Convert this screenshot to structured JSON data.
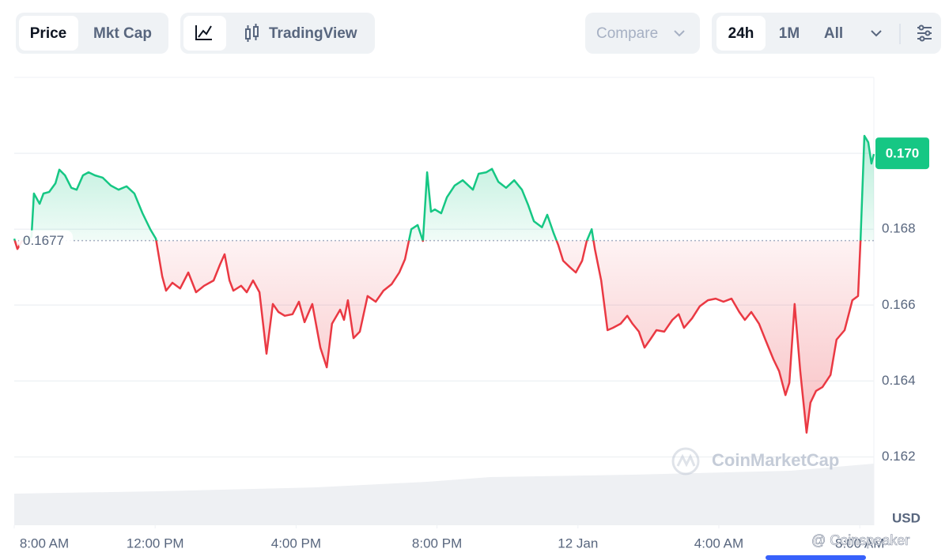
{
  "toolbar": {
    "tabs": [
      "Price",
      "Mkt Cap"
    ],
    "chart_views": [
      "TradingView"
    ],
    "compare": "Compare",
    "ranges": [
      "24h",
      "1M",
      "All"
    ]
  },
  "chart_data": {
    "type": "line",
    "x": [
      0,
      0.09,
      0.22,
      0.49,
      0.56,
      0.72,
      0.83,
      0.99,
      1.17,
      1.28,
      1.44,
      1.62,
      1.77,
      1.95,
      2.11,
      2.29,
      2.51,
      2.74,
      2.96,
      3.19,
      3.41,
      3.64,
      3.86,
      4.02,
      4.2,
      4.31,
      4.49,
      4.71,
      4.94,
      5.16,
      5.39,
      5.66,
      5.84,
      5.97,
      6.11,
      6.22,
      6.44,
      6.6,
      6.78,
      6.96,
      7.16,
      7.34,
      7.5,
      7.68,
      7.9,
      8.08,
      8.24,
      8.46,
      8.69,
      8.87,
      9.02,
      9.25,
      9.36,
      9.47,
      9.63,
      9.81,
      10.03,
      10.26,
      10.48,
      10.71,
      10.93,
      11.09,
      11.27,
      11.45,
      11.6,
      11.72,
      11.83,
      11.94,
      12.12,
      12.28,
      12.5,
      12.73,
      13.02,
      13.18,
      13.4,
      13.56,
      13.74,
      13.96,
      14.19,
      14.41,
      14.59,
      14.75,
      14.98,
      15.13,
      15.31,
      15.44,
      15.58,
      15.76,
      15.94,
      16.12,
      16.25,
      16.39,
      16.48,
      16.66,
      16.84,
      16.99,
      17.21,
      17.4,
      17.55,
      17.73,
      17.89,
      18.05,
      18.23,
      18.45,
      18.68,
      18.86,
      19.01,
      19.24,
      19.46,
      19.69,
      19.91,
      20.13,
      20.36,
      20.58,
      20.74,
      20.92,
      21.14,
      21.32,
      21.55,
      21.71,
      21.89,
      22.0,
      22.15,
      22.31,
      22.49,
      22.6,
      22.76,
      22.94,
      23.17,
      23.34,
      23.57,
      23.79,
      23.95,
      24.02,
      24.13,
      24.24,
      24.33,
      24.4
    ],
    "series": [
      {
        "values": [
          0.16775,
          0.16748,
          0.16769,
          0.1678,
          0.16894,
          0.16867,
          0.16894,
          0.16898,
          0.16921,
          0.16957,
          0.16942,
          0.16909,
          0.16904,
          0.16942,
          0.1695,
          0.16942,
          0.16936,
          0.16915,
          0.16904,
          0.16913,
          0.16894,
          0.16842,
          0.168,
          0.16775,
          0.16676,
          0.16638,
          0.16659,
          0.16644,
          0.16686,
          0.16634,
          0.16651,
          0.16665,
          0.16707,
          0.16734,
          0.16665,
          0.16638,
          0.16651,
          0.16634,
          0.16665,
          0.16634,
          0.16472,
          0.16603,
          0.16582,
          0.16572,
          0.16576,
          0.16609,
          0.16555,
          0.16603,
          0.16488,
          0.16436,
          0.16551,
          0.16588,
          0.16561,
          0.16613,
          0.16513,
          0.1653,
          0.16624,
          0.16609,
          0.16638,
          0.16655,
          0.16686,
          0.16721,
          0.168,
          0.16811,
          0.16769,
          0.1695,
          0.16846,
          0.16852,
          0.16842,
          0.16884,
          0.16915,
          0.16929,
          0.16904,
          0.16946,
          0.1695,
          0.16959,
          0.16925,
          0.16909,
          0.16929,
          0.16904,
          0.16863,
          0.16821,
          0.16805,
          0.16838,
          0.1679,
          0.16759,
          0.16717,
          0.16701,
          0.16686,
          0.16717,
          0.16769,
          0.168,
          0.16748,
          0.16665,
          0.16534,
          0.1654,
          0.16551,
          0.16572,
          0.16551,
          0.1653,
          0.16488,
          0.16509,
          0.16534,
          0.1653,
          0.16561,
          0.16576,
          0.1654,
          0.16565,
          0.16597,
          0.16613,
          0.16617,
          0.16609,
          0.16617,
          0.16582,
          0.16561,
          0.16582,
          0.16551,
          0.16509,
          0.16457,
          0.16426,
          0.16363,
          0.16395,
          0.16603,
          0.16426,
          0.16264,
          0.16343,
          0.16374,
          0.16384,
          0.16416,
          0.16509,
          0.16534,
          0.16613,
          0.16624,
          0.16769,
          0.17046,
          0.17029,
          0.16973,
          0.16998
        ]
      }
    ],
    "colors": {
      "above": "#16c784",
      "below": "#ea3943"
    },
    "baseline": 0.1677,
    "current_price": {
      "value": 0.17,
      "label": "0.170"
    },
    "xlim": [
      0,
      24.4
    ],
    "xticks": [
      {
        "value": 0,
        "label": "8:00 AM"
      },
      {
        "value": 4,
        "label": "12:00 PM"
      },
      {
        "value": 8,
        "label": "4:00 PM"
      },
      {
        "value": 12,
        "label": "8:00 PM"
      },
      {
        "value": 16,
        "label": "12 Jan"
      },
      {
        "value": 20,
        "label": "4:00 AM"
      },
      {
        "value": 24,
        "label": "8:00 AM"
      }
    ],
    "ylim": [
      0.1602,
      0.172
    ],
    "yticks": [
      0.162,
      0.164,
      0.166,
      0.168,
      {
        "value": 0.17,
        "label": "0.170"
      }
    ],
    "grid": true,
    "currency": "USD",
    "watermark": "CoinMarketCap",
    "credit": "@ Coinspeaker"
  }
}
